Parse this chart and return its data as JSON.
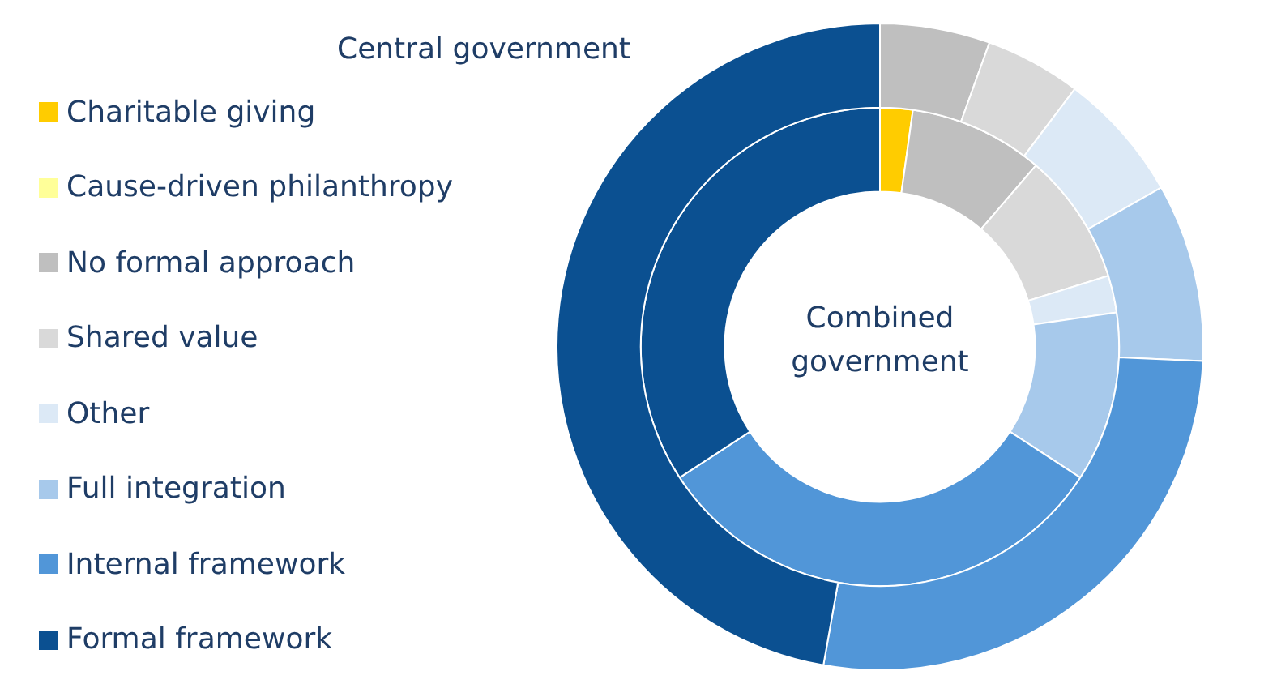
{
  "chart_data": {
    "type": "donut",
    "legend": "left",
    "categories": [
      "Charitable giving",
      "Cause-driven philanthropy",
      "No formal approach",
      "Shared value",
      "Other",
      "Full integration",
      "Internal framework",
      "Formal framework"
    ],
    "colors": [
      "#ffcc00",
      "#ffff99",
      "#bfbfbf",
      "#d9d9d9",
      "#dce9f6",
      "#a7c9eb",
      "#5196d8",
      "#0b5091"
    ],
    "series": [
      {
        "name": "Central government",
        "values": [
          0,
          0,
          5.5,
          4.8,
          6.5,
          8.9,
          27.1,
          47.2
        ]
      },
      {
        "name": "Combined government",
        "values": [
          2.2,
          0,
          9.1,
          8.9,
          2.5,
          11.5,
          31.6,
          34.2
        ]
      }
    ]
  }
}
